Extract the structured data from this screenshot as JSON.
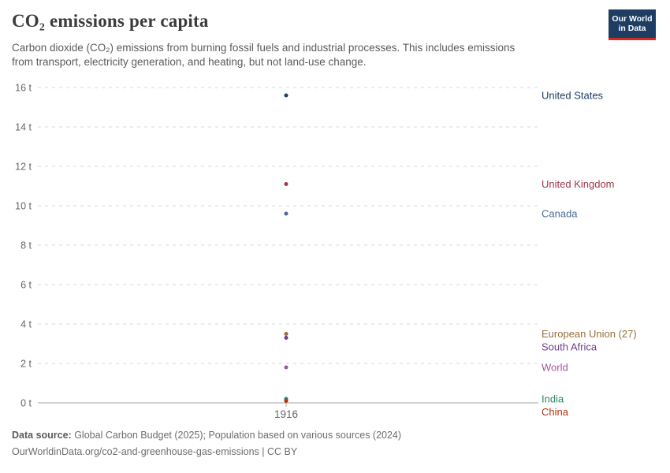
{
  "header": {
    "title": "CO₂ emissions per capita",
    "subtitle_lines": [
      "Carbon dioxide (CO₂) emissions from burning fossil fuels and industrial processes. This includes emissions",
      "from transport, electricity generation, and heating, but not land-use change."
    ]
  },
  "logo": {
    "line1": "Our World",
    "line2": "in Data",
    "bg_color": "#1d3d63",
    "stripe_color": "#d42b21"
  },
  "chart_data": {
    "type": "scatter",
    "x": [
      1916
    ],
    "x_tick_label": "1916",
    "unit": "t",
    "ylim": [
      0,
      16
    ],
    "ytick_step": 2,
    "yticks": [
      "0 t",
      "2 t",
      "4 t",
      "6 t",
      "8 t",
      "10 t",
      "12 t",
      "14 t",
      "16 t"
    ],
    "grid": true,
    "legend_position": "right-labels",
    "series": [
      {
        "name": "United States",
        "value": 15.6,
        "color": "#1d3d63"
      },
      {
        "name": "United Kingdom",
        "value": 11.1,
        "color": "#9c3848"
      },
      {
        "name": "Canada",
        "value": 9.6,
        "color": "#4c6a9c"
      },
      {
        "name": "European Union (27)",
        "value": 3.5,
        "color": "#996d39"
      },
      {
        "name": "South Africa",
        "value": 3.3,
        "color": "#6d3e91"
      },
      {
        "name": "World",
        "value": 1.8,
        "color": "#a2559c"
      },
      {
        "name": "India",
        "value": 0.2,
        "color": "#2c8465"
      },
      {
        "name": "China",
        "value": 0.1,
        "color": "#b13507"
      }
    ]
  },
  "footer": {
    "source_label": "Data source:",
    "source_text": " Global Carbon Budget (2025); Population based on various sources (2024)",
    "url_line": "OurWorldinData.org/co2-and-greenhouse-gas-emissions | CC BY"
  }
}
